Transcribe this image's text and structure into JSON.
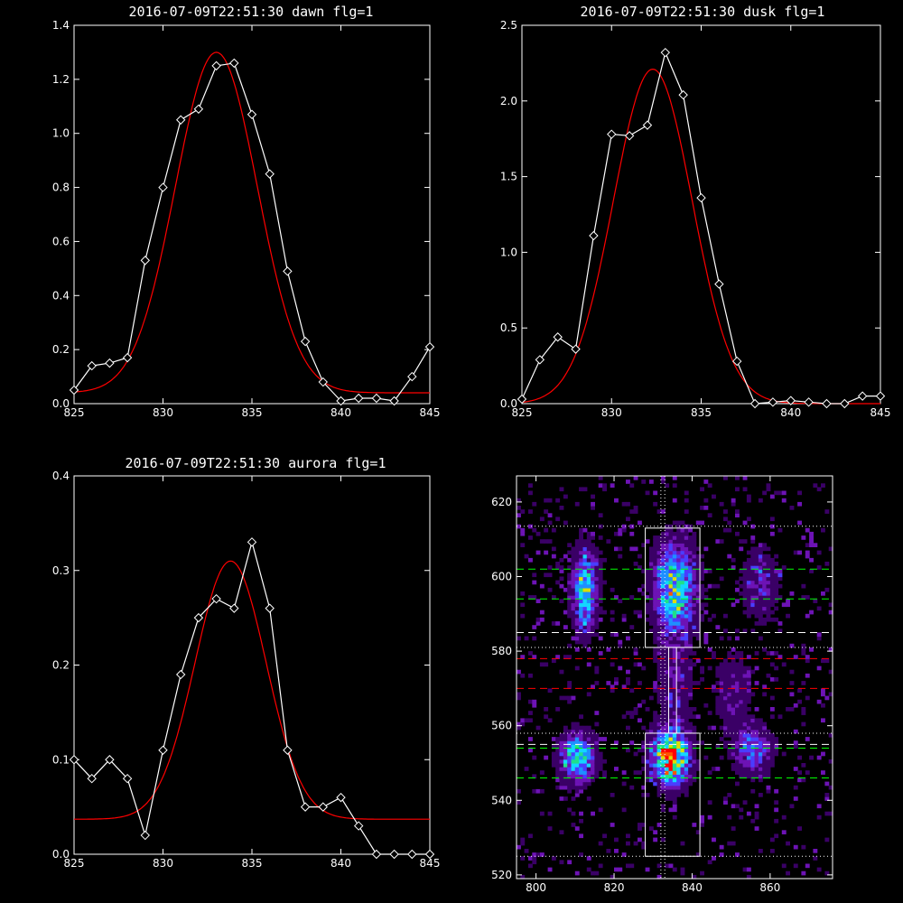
{
  "chart_data": [
    {
      "type": "line",
      "title": "2016-07-09T22:51:30 dawn flg=1",
      "xlim": [
        825,
        845
      ],
      "ylim": [
        0,
        1.4
      ],
      "xticks": [
        825,
        830,
        835,
        840,
        845
      ],
      "yticks": [
        "0.0",
        "0.2",
        "0.4",
        "0.6",
        "0.8",
        "1.0",
        "1.2",
        "1.4"
      ],
      "series": [
        {
          "color": "#ffffff",
          "marker": "diamond",
          "x": [
            825,
            826,
            827,
            828,
            829,
            830,
            831,
            832,
            833,
            834,
            835,
            836,
            837,
            838,
            839,
            840,
            841,
            842,
            843,
            844,
            845
          ],
          "y": [
            0.05,
            0.14,
            0.15,
            0.17,
            0.53,
            0.8,
            1.05,
            1.09,
            1.25,
            1.26,
            1.07,
            0.85,
            0.49,
            0.23,
            0.08,
            0.01,
            0.02,
            0.02,
            0.01,
            0.1,
            0.21
          ]
        },
        {
          "color": "#ff0000",
          "fit": {
            "amplitude": 1.26,
            "center": 833.0,
            "sigma": 2.3,
            "offset": 0.04
          }
        }
      ]
    },
    {
      "type": "line",
      "title": "2016-07-09T22:51:30 dusk flg=1",
      "xlim": [
        825,
        845
      ],
      "ylim": [
        0,
        2.5
      ],
      "xticks": [
        825,
        830,
        835,
        840,
        845
      ],
      "yticks": [
        "0.0",
        "0.5",
        "1.0",
        "1.5",
        "2.0",
        "2.5"
      ],
      "series": [
        {
          "color": "#ffffff",
          "marker": "diamond",
          "x": [
            825,
            826,
            827,
            828,
            829,
            830,
            831,
            832,
            833,
            834,
            835,
            836,
            837,
            838,
            839,
            840,
            841,
            842,
            843,
            844,
            845
          ],
          "y": [
            0.03,
            0.29,
            0.44,
            0.36,
            1.11,
            1.78,
            1.77,
            1.84,
            2.32,
            2.04,
            1.36,
            0.79,
            0.28,
            0.0,
            0.01,
            0.02,
            0.01,
            0.0,
            0.0,
            0.05,
            0.05
          ]
        },
        {
          "color": "#ff0000",
          "fit": {
            "amplitude": 2.21,
            "center": 832.3,
            "sigma": 2.2,
            "offset": 0.0
          }
        }
      ]
    },
    {
      "type": "line",
      "title": "2016-07-09T22:51:30 aurora flg=1",
      "xlim": [
        825,
        845
      ],
      "ylim": [
        0,
        0.4
      ],
      "xticks": [
        825,
        830,
        835,
        840,
        845
      ],
      "yticks": [
        "0.0",
        "0.1",
        "0.2",
        "0.3",
        "0.4"
      ],
      "series": [
        {
          "color": "#ffffff",
          "marker": "diamond",
          "x": [
            825,
            826,
            827,
            828,
            829,
            830,
            831,
            832,
            833,
            834,
            835,
            836,
            837,
            838,
            839,
            840,
            841,
            842,
            843,
            844,
            845
          ],
          "y": [
            0.1,
            0.08,
            0.1,
            0.08,
            0.02,
            0.11,
            0.19,
            0.25,
            0.27,
            0.26,
            0.33,
            0.26,
            0.11,
            0.05,
            0.05,
            0.06,
            0.03,
            0.0,
            0.0,
            0.0,
            0.0
          ]
        },
        {
          "color": "#ff0000",
          "fit": {
            "amplitude": 0.273,
            "center": 833.8,
            "sigma": 2.0,
            "offset": 0.037
          }
        }
      ]
    },
    {
      "type": "heatmap",
      "title": "",
      "xlim": [
        795,
        876
      ],
      "ylim": [
        519,
        627
      ],
      "xticks": [
        800,
        820,
        840,
        860
      ],
      "yticks": [
        520,
        540,
        560,
        580,
        600,
        620
      ],
      "colormap": [
        "#000000",
        "#3a0066",
        "#6d13b5",
        "#4a3dff",
        "#1f8fff",
        "#13d6ff",
        "#1fe08a",
        "#dddd00",
        "#ff5500",
        "#ff0000"
      ],
      "blobs": [
        {
          "x": 812,
          "y": 596,
          "sx": 2.0,
          "sy": 7.0,
          "peak": 0.55
        },
        {
          "x": 810,
          "y": 551,
          "sx": 2.8,
          "sy": 4.2,
          "peak": 0.6
        },
        {
          "x": 835,
          "y": 596,
          "sx": 3.5,
          "sy": 8.0,
          "peak": 0.6
        },
        {
          "x": 834,
          "y": 551,
          "sx": 3.0,
          "sy": 4.5,
          "peak": 0.97
        },
        {
          "x": 855,
          "y": 553,
          "sx": 3.0,
          "sy": 4.0,
          "peak": 0.38
        },
        {
          "x": 857,
          "y": 598,
          "sx": 3.0,
          "sy": 6.0,
          "peak": 0.22
        },
        {
          "x": 850,
          "y": 568,
          "sx": 3.0,
          "sy": 7.0,
          "peak": 0.16
        },
        {
          "x": 835,
          "y": 570,
          "sx": 3.0,
          "sy": 10.0,
          "peak": 0.16
        }
      ],
      "boxes": [
        {
          "x": [
            828,
            842
          ],
          "y": [
            581,
            613
          ]
        },
        {
          "x": [
            828,
            842
          ],
          "y": [
            525,
            558
          ]
        },
        {
          "x": [
            834,
            836
          ],
          "y": [
            558,
            581
          ]
        }
      ],
      "hlines": [
        {
          "y": 613.5,
          "color": "#ffffff",
          "style": "dotted"
        },
        {
          "y": 581,
          "color": "#ffffff",
          "style": "dotted"
        },
        {
          "y": 558,
          "color": "#ffffff",
          "style": "dotted"
        },
        {
          "y": 525,
          "color": "#ffffff",
          "style": "dotted"
        },
        {
          "y": 602,
          "color": "#00ff00",
          "style": "dashed"
        },
        {
          "y": 594,
          "color": "#00ff00",
          "style": "dashed"
        },
        {
          "y": 554,
          "color": "#00ff00",
          "style": "dashed"
        },
        {
          "y": 546,
          "color": "#00ff00",
          "style": "dashed"
        },
        {
          "y": 585,
          "color": "#ffffff",
          "style": "dashed"
        },
        {
          "y": 555,
          "color": "#ffffff",
          "style": "dashed"
        },
        {
          "y": 578,
          "color": "#ff0000",
          "style": "dashed"
        },
        {
          "y": 570,
          "color": "#ff0000",
          "style": "dashed"
        }
      ],
      "vlines": [
        {
          "x": 832,
          "color": "#ffffff",
          "style": "dotted"
        },
        {
          "x": 833,
          "color": "#ffffff",
          "style": "dotted"
        }
      ]
    }
  ]
}
